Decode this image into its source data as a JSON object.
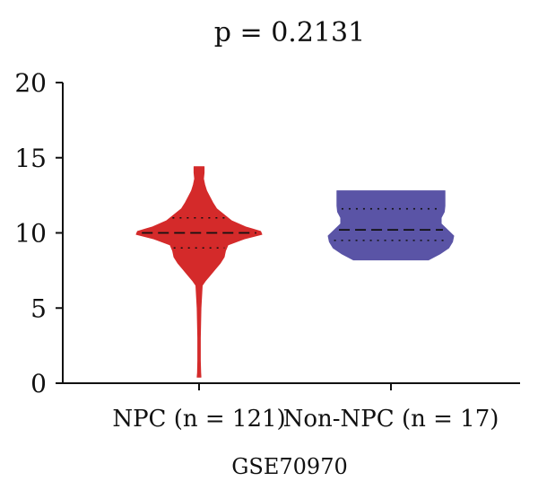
{
  "chart_data": {
    "type": "violin",
    "title": "p = 0.2131",
    "xlabel": "GSE70970",
    "ylabel": "",
    "ylim": [
      0,
      20
    ],
    "yticks": [
      0,
      5,
      10,
      15,
      20
    ],
    "categories": [
      "NPC (n = 121)",
      "Non-NPC (n = 17)"
    ],
    "series": [
      {
        "category": "NPC (n = 121)",
        "color": "#d42a2a",
        "min": 0.4,
        "max": 14.4,
        "q1": 9.0,
        "median": 10.0,
        "q3": 11.0,
        "profile": [
          [
            0.4,
            0.03
          ],
          [
            0.7,
            0.025
          ],
          [
            1.5,
            0.02
          ],
          [
            3.0,
            0.02
          ],
          [
            5.0,
            0.03
          ],
          [
            6.5,
            0.05
          ],
          [
            6.8,
            0.1
          ],
          [
            7.2,
            0.18
          ],
          [
            7.6,
            0.26
          ],
          [
            8.0,
            0.34
          ],
          [
            8.4,
            0.4
          ],
          [
            8.8,
            0.42
          ],
          [
            9.2,
            0.46
          ],
          [
            9.6,
            0.72
          ],
          [
            9.9,
            1.0
          ],
          [
            10.1,
            0.98
          ],
          [
            10.4,
            0.74
          ],
          [
            10.8,
            0.52
          ],
          [
            11.2,
            0.4
          ],
          [
            11.6,
            0.28
          ],
          [
            12.0,
            0.22
          ],
          [
            12.4,
            0.17
          ],
          [
            12.8,
            0.12
          ],
          [
            13.2,
            0.09
          ],
          [
            13.6,
            0.07
          ],
          [
            14.0,
            0.08
          ],
          [
            14.4,
            0.08
          ]
        ]
      },
      {
        "category": "Non-NPC (n = 17)",
        "color": "#5a54a6",
        "min": 8.2,
        "max": 12.8,
        "q1": 9.5,
        "median": 10.2,
        "q3": 11.6,
        "profile": [
          [
            8.2,
            0.6
          ],
          [
            8.6,
            0.78
          ],
          [
            9.0,
            0.92
          ],
          [
            9.4,
            0.98
          ],
          [
            9.8,
            1.0
          ],
          [
            10.2,
            0.9
          ],
          [
            10.6,
            0.8
          ],
          [
            11.0,
            0.8
          ],
          [
            11.4,
            0.85
          ],
          [
            11.8,
            0.86
          ],
          [
            12.2,
            0.86
          ],
          [
            12.6,
            0.86
          ],
          [
            12.8,
            0.86
          ]
        ]
      }
    ]
  }
}
